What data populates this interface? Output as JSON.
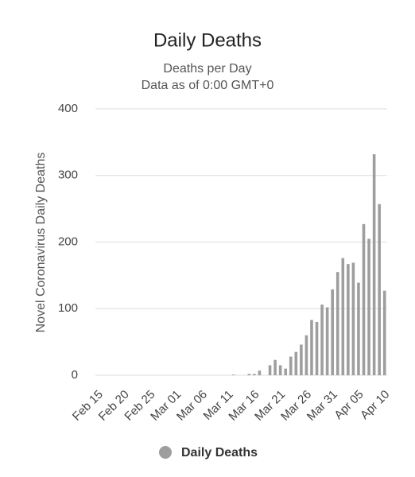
{
  "chart_data": {
    "type": "bar",
    "title": "Daily Deaths",
    "subtitle": [
      "Deaths per Day",
      "Data as of 0:00 GMT+0"
    ],
    "ylabel": "Novel Coronavirus Daily Deaths",
    "categories": [
      "Feb 15",
      null,
      null,
      null,
      null,
      "Feb 20",
      null,
      null,
      null,
      null,
      "Feb 25",
      null,
      null,
      null,
      null,
      "Mar 01",
      null,
      null,
      null,
      null,
      "Mar 06",
      null,
      null,
      null,
      null,
      "Mar 11",
      null,
      null,
      null,
      null,
      "Mar 16",
      null,
      null,
      null,
      null,
      "Mar 21",
      null,
      null,
      null,
      null,
      "Mar 26",
      null,
      null,
      null,
      null,
      "Mar 31",
      null,
      null,
      null,
      null,
      "Apr 05",
      null,
      null,
      null,
      null,
      "Apr 10"
    ],
    "series": [
      {
        "name": "Daily Deaths",
        "color": "#9e9e9e",
        "values": [
          0,
          0,
          0,
          0,
          0,
          0,
          0,
          0,
          0,
          0,
          0,
          0,
          0,
          0,
          0,
          0,
          0,
          0,
          0,
          0,
          0,
          0,
          0,
          0,
          0,
          0,
          1,
          0,
          0,
          2,
          2,
          7,
          0,
          15,
          23,
          15,
          10,
          28,
          35,
          46,
          60,
          83,
          80,
          106,
          102,
          129,
          155,
          176,
          167,
          169,
          139,
          227,
          205,
          332,
          257,
          127
        ]
      }
    ],
    "ylim": [
      0,
      400
    ],
    "yticks": [
      0,
      100,
      200,
      300,
      400
    ],
    "grid": true
  }
}
